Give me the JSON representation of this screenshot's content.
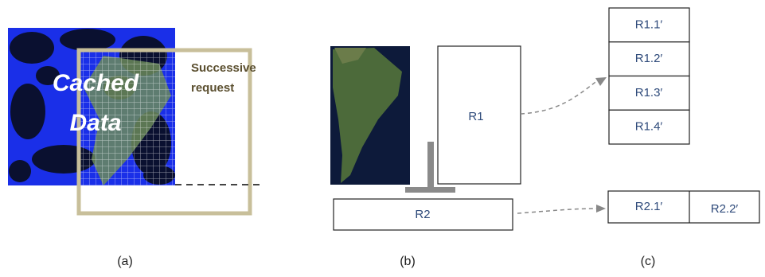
{
  "panel_a": {
    "cached_label": [
      "Cached",
      "Data"
    ],
    "request_label": [
      "Successive",
      "request"
    ],
    "caption": "(a)"
  },
  "panel_b": {
    "r1": "R1",
    "r2": "R2",
    "caption": "(b)"
  },
  "panel_c": {
    "r1_parts": [
      "R1.1′",
      "R1.2′",
      "R1.3′",
      "R1.4′"
    ],
    "r2_parts": [
      "R2.1′",
      "R2.2′"
    ],
    "caption": "(c)"
  }
}
